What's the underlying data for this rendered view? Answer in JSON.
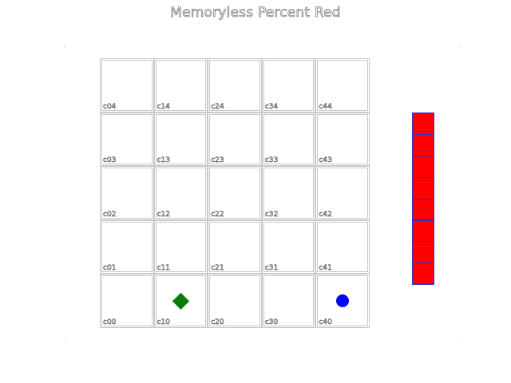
{
  "title": "Memoryless Percent Red",
  "grid": {
    "cols": 5,
    "rows": 5,
    "cells": [
      {
        "label": "c04",
        "col": 0,
        "row": 4
      },
      {
        "label": "c14",
        "col": 1,
        "row": 4
      },
      {
        "label": "c24",
        "col": 2,
        "row": 4
      },
      {
        "label": "c34",
        "col": 3,
        "row": 4
      },
      {
        "label": "c44",
        "col": 4,
        "row": 4
      },
      {
        "label": "c03",
        "col": 0,
        "row": 3
      },
      {
        "label": "c13",
        "col": 1,
        "row": 3
      },
      {
        "label": "c23",
        "col": 2,
        "row": 3
      },
      {
        "label": "c33",
        "col": 3,
        "row": 3
      },
      {
        "label": "c43",
        "col": 4,
        "row": 3
      },
      {
        "label": "c02",
        "col": 0,
        "row": 2
      },
      {
        "label": "c12",
        "col": 1,
        "row": 2
      },
      {
        "label": "c22",
        "col": 2,
        "row": 2
      },
      {
        "label": "c32",
        "col": 3,
        "row": 2
      },
      {
        "label": "c42",
        "col": 4,
        "row": 2
      },
      {
        "label": "c01",
        "col": 0,
        "row": 1
      },
      {
        "label": "c11",
        "col": 1,
        "row": 1
      },
      {
        "label": "c21",
        "col": 2,
        "row": 1
      },
      {
        "label": "c31",
        "col": 3,
        "row": 1
      },
      {
        "label": "c41",
        "col": 4,
        "row": 1
      },
      {
        "label": "c00",
        "col": 0,
        "row": 0
      },
      {
        "label": "c10",
        "col": 1,
        "row": 0
      },
      {
        "label": "c20",
        "col": 2,
        "row": 0
      },
      {
        "label": "c30",
        "col": 3,
        "row": 0
      },
      {
        "label": "c40",
        "col": 4,
        "row": 0
      }
    ]
  },
  "agent": {
    "shape": "diamond",
    "color": "#0a7a0a",
    "col": 1,
    "row": 0
  },
  "goal": {
    "shape": "circle",
    "color": "#0000ff",
    "col": 4,
    "row": 0
  },
  "history": {
    "count": 8,
    "fill_color": "#ff0000",
    "border_color": "#3030c0",
    "cells": [
      "red",
      "red",
      "red",
      "red",
      "red",
      "red",
      "red",
      "red"
    ]
  }
}
